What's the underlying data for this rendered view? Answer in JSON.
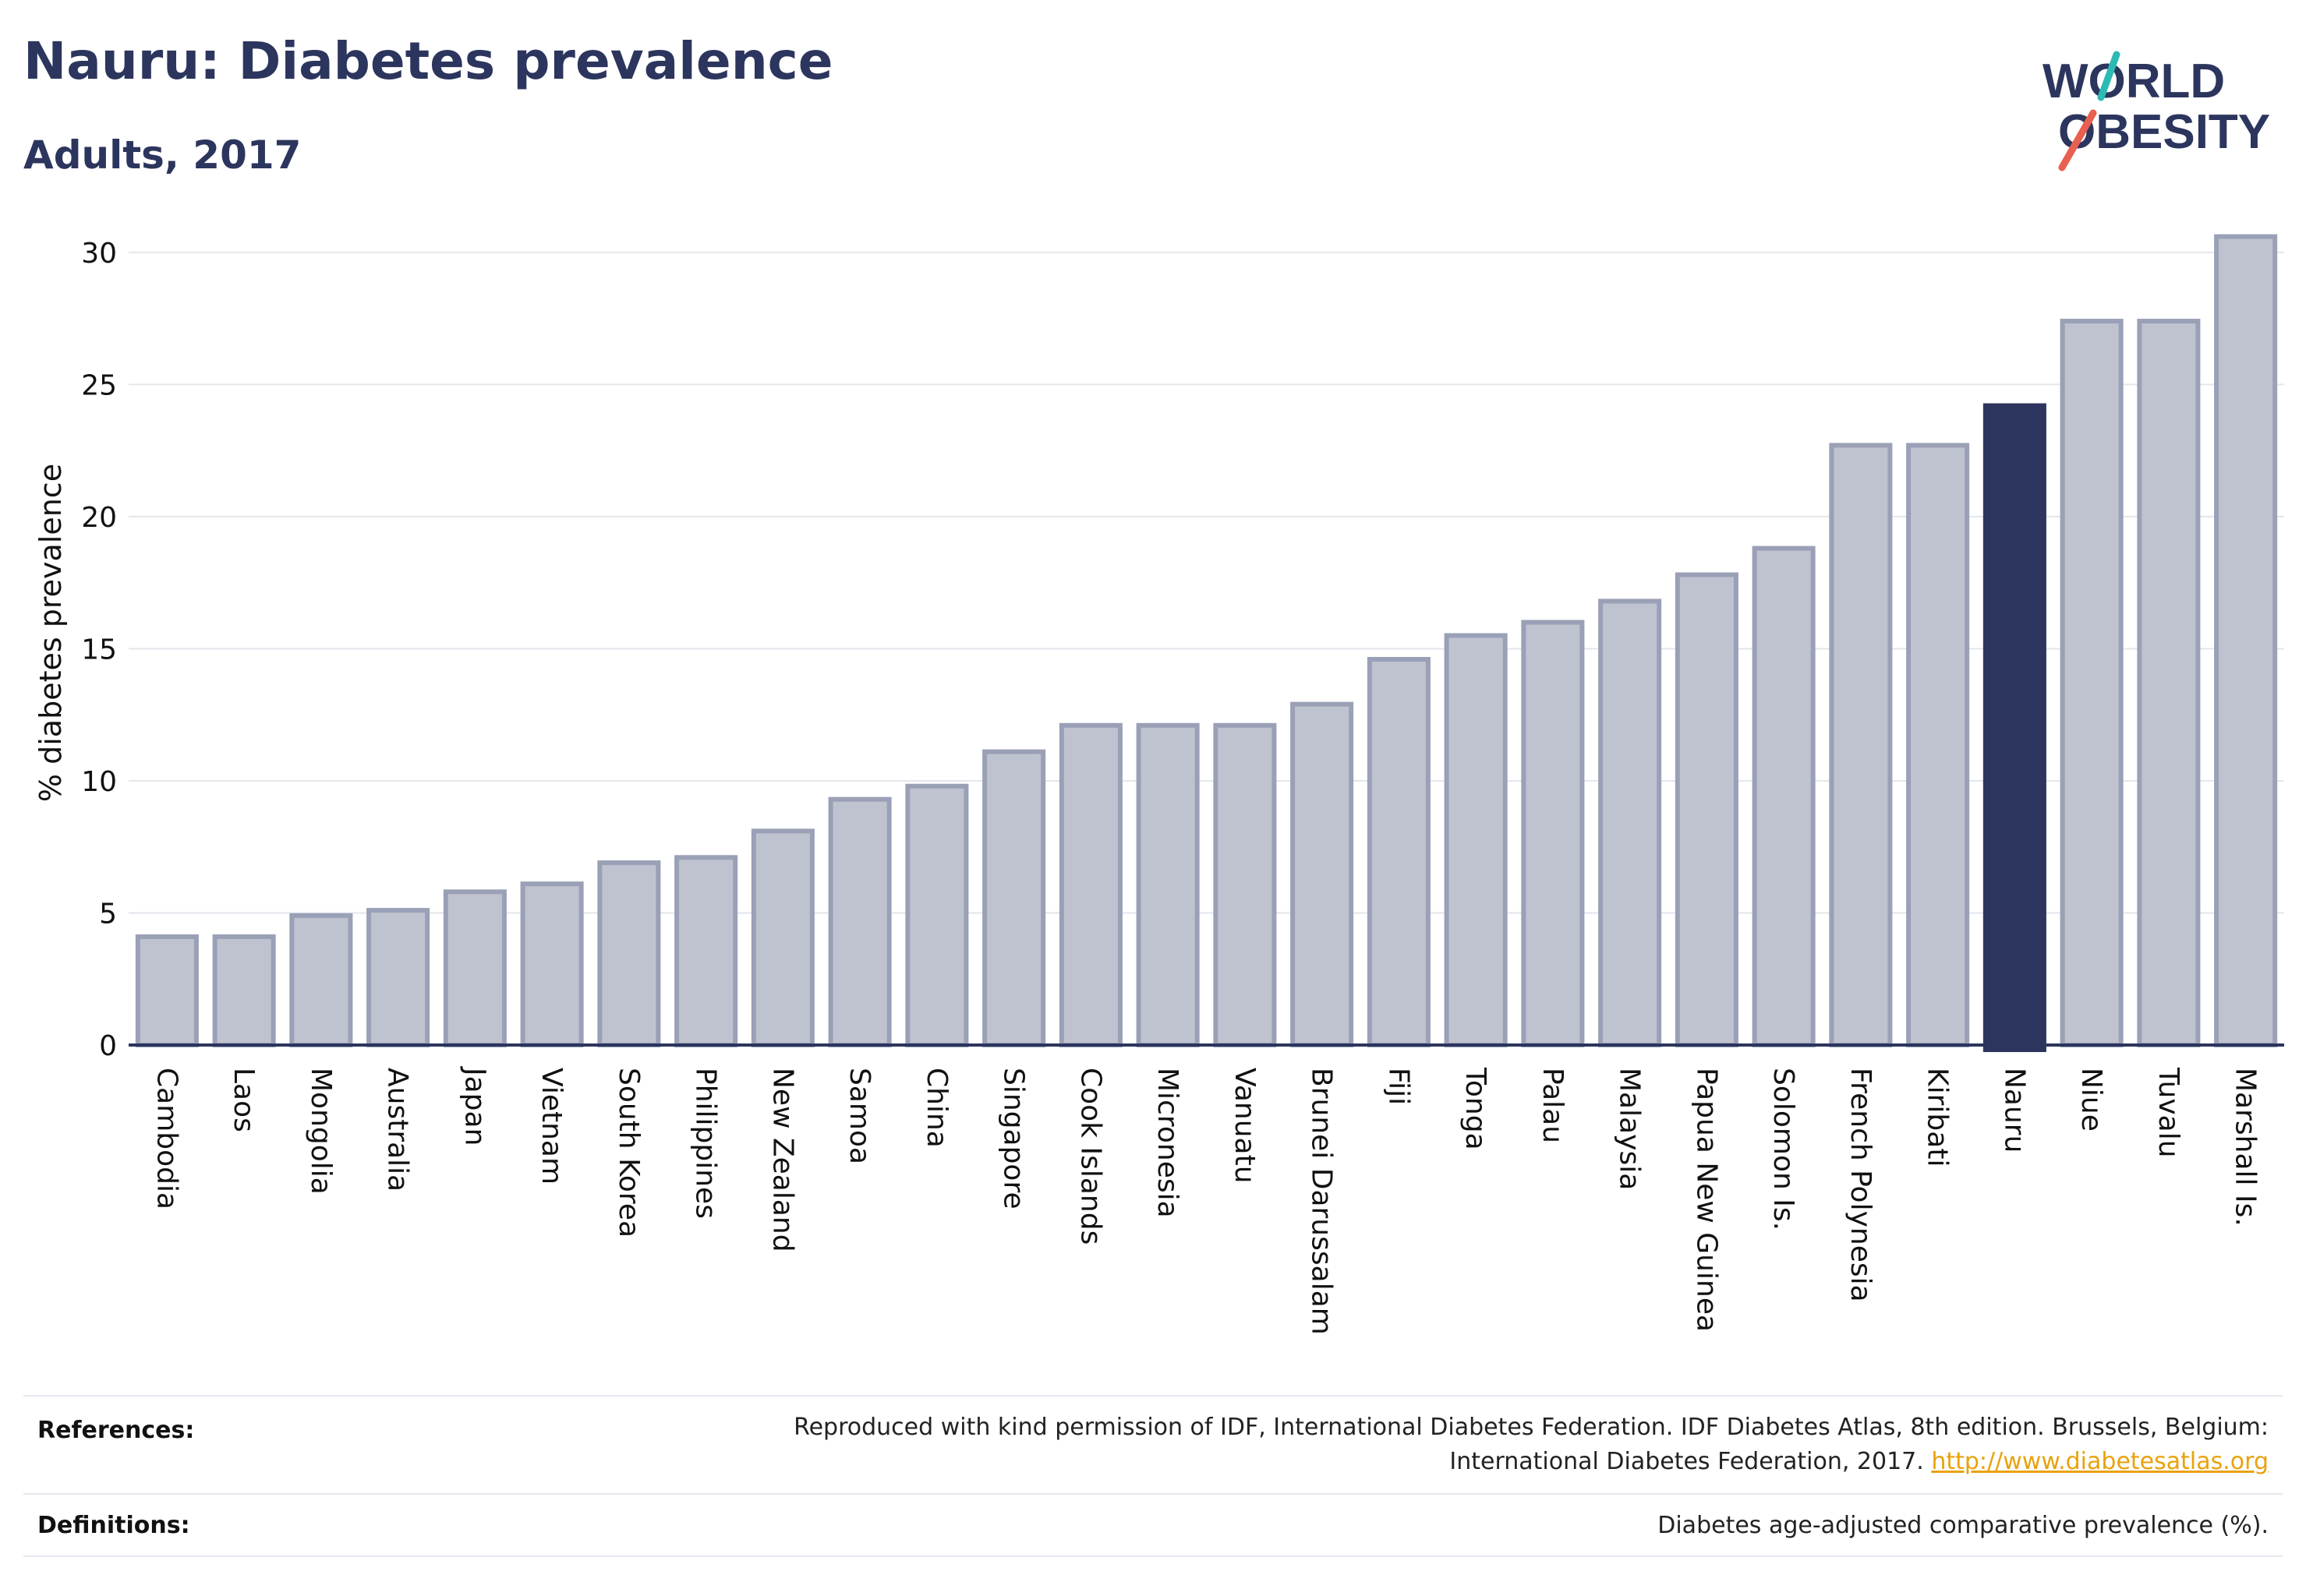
{
  "title": "Nauru: Diabetes prevalence",
  "subtitle": "Adults, 2017",
  "logo": {
    "line1": "WORLD",
    "line2": "OBESITY"
  },
  "footer": {
    "references_label": "References:",
    "references_text_line1": "Reproduced with kind permission of IDF, International Diabetes Federation. IDF Diabetes Atlas, 8th edition. Brussels, Belgium:",
    "references_text_line2": "International Diabetes Federation, 2017. ",
    "references_link": "http://www.diabetesatlas.org",
    "definitions_label": "Definitions:",
    "definitions_text": "Diabetes age-adjusted comparative prevalence (%)."
  },
  "colors": {
    "bar": "#bfc3d0",
    "bar_stroke": "#9aa0b6",
    "highlight": "#2c355d",
    "grid": "#e4e6ec",
    "axis": "#2c355d",
    "text": "#2c355d"
  },
  "chart_data": {
    "type": "bar",
    "title": "Nauru: Diabetes prevalence",
    "subtitle": "Adults, 2017",
    "xlabel": "",
    "ylabel": "% diabetes prevalence",
    "ylim": [
      0,
      31
    ],
    "yticks": [
      0,
      5,
      10,
      15,
      20,
      25,
      30
    ],
    "grid": true,
    "highlight": "Nauru",
    "categories": [
      "Cambodia",
      "Laos",
      "Mongolia",
      "Australia",
      "Japan",
      "Vietnam",
      "South Korea",
      "Philippines",
      "New Zealand",
      "Samoa",
      "China",
      "Singapore",
      "Cook Islands",
      "Micronesia",
      "Vanuatu",
      "Brunei Darussalam",
      "Fiji",
      "Tonga",
      "Palau",
      "Malaysia",
      "Papua New Guinea",
      "Solomon Is.",
      "French Polynesia",
      "Kiribati",
      "Nauru",
      "Niue",
      "Tuvalu",
      "Marshall Is."
    ],
    "values": [
      4.1,
      4.1,
      4.9,
      5.1,
      5.8,
      6.1,
      6.9,
      7.1,
      8.1,
      9.3,
      9.8,
      11.1,
      12.1,
      12.1,
      12.1,
      12.9,
      14.6,
      15.5,
      16.0,
      16.8,
      17.8,
      18.8,
      22.7,
      22.7,
      24.2,
      27.4,
      27.4,
      30.6
    ]
  }
}
